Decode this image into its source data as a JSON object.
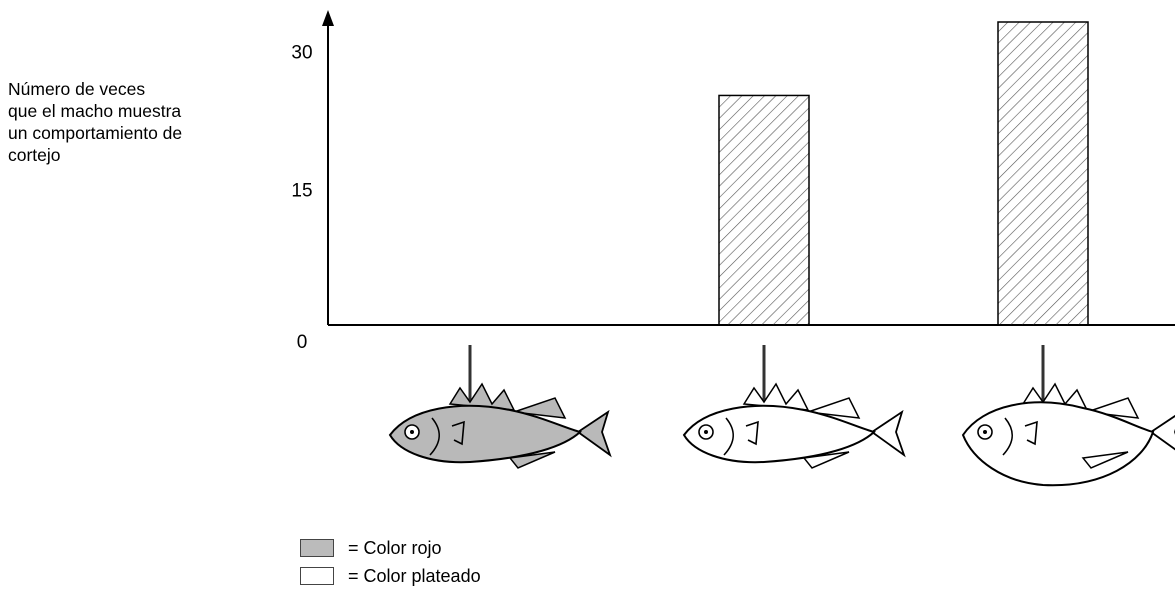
{
  "chart_data": {
    "type": "bar",
    "ylabel_lines": [
      "Número de veces",
      "que el macho muestra",
      "un comportamiento de",
      "cortejo"
    ],
    "yticks": [
      0,
      15,
      30
    ],
    "ylim": [
      0,
      33
    ],
    "categories": [
      {
        "model": "fish-red-slim",
        "value": 0,
        "color": "red"
      },
      {
        "model": "fish-silver-slim",
        "value": 25,
        "color": "silver"
      },
      {
        "model": "fish-silver-swollen",
        "value": 33,
        "color": "silver"
      }
    ],
    "bar_fill": "hatched",
    "legend": [
      {
        "label": "= Color rojo",
        "swatch": "#bbbbbb"
      },
      {
        "label": "= Color plateado",
        "swatch": "#ffffff"
      }
    ],
    "grid": false
  }
}
